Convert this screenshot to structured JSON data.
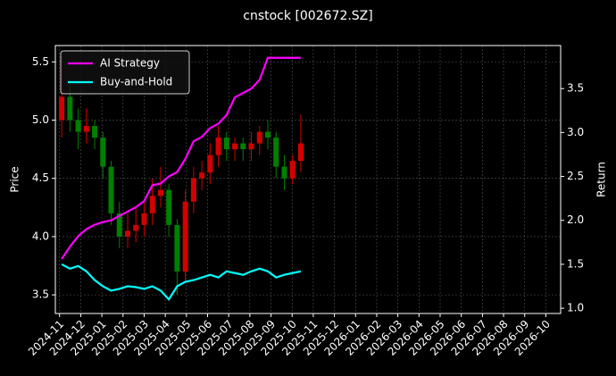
{
  "chart_data": {
    "type": "candlestick",
    "title": "cnstock [002672.SZ]",
    "y_label": "Price",
    "y2_label": "Return",
    "x": [
      0.1,
      0.49,
      0.88,
      1.27,
      1.66,
      2.05,
      2.44,
      2.83,
      3.22,
      3.61,
      4.0,
      4.39,
      4.78,
      5.17,
      5.56,
      5.95,
      6.34,
      6.73,
      7.12,
      7.51,
      7.9,
      8.29,
      8.68,
      9.07,
      9.46,
      9.85,
      10.24,
      10.63,
      11.02,
      11.41
    ],
    "open": [
      5.0,
      5.2,
      5.0,
      4.9,
      4.95,
      4.85,
      4.6,
      4.2,
      4.0,
      4.05,
      4.1,
      4.2,
      4.35,
      4.4,
      4.1,
      3.7,
      4.3,
      4.5,
      4.55,
      4.7,
      4.85,
      4.75,
      4.8,
      4.75,
      4.8,
      4.9,
      4.85,
      4.6,
      4.5,
      4.65
    ],
    "high": [
      5.55,
      5.35,
      5.1,
      5.1,
      5.0,
      4.9,
      4.65,
      4.3,
      4.2,
      4.25,
      4.3,
      4.5,
      4.6,
      4.45,
      4.15,
      4.4,
      4.6,
      4.65,
      4.8,
      4.95,
      4.9,
      4.85,
      4.85,
      4.9,
      4.95,
      5.0,
      4.9,
      4.7,
      4.7,
      5.05
    ],
    "low": [
      4.85,
      4.9,
      4.75,
      4.8,
      4.75,
      4.5,
      4.1,
      3.9,
      3.9,
      3.95,
      4.0,
      4.1,
      4.25,
      4.0,
      3.5,
      3.6,
      4.2,
      4.4,
      4.45,
      4.6,
      4.65,
      4.65,
      4.65,
      4.65,
      4.7,
      4.75,
      4.5,
      4.4,
      4.45,
      4.55
    ],
    "close": [
      5.2,
      5.0,
      4.9,
      4.95,
      4.85,
      4.6,
      4.2,
      4.0,
      4.05,
      4.1,
      4.2,
      4.35,
      4.4,
      4.1,
      3.7,
      4.3,
      4.5,
      4.55,
      4.7,
      4.85,
      4.75,
      4.8,
      4.75,
      4.8,
      4.9,
      4.85,
      4.6,
      4.5,
      4.65,
      4.8
    ],
    "up_color": "#d40000",
    "down_color": "#008000",
    "series": [
      {
        "name": "AI Strategy",
        "color": "#ff00ff",
        "axis": "y2",
        "values": [
          1.56,
          1.7,
          1.82,
          1.9,
          1.95,
          1.98,
          2.0,
          2.05,
          2.1,
          2.15,
          2.22,
          2.4,
          2.42,
          2.5,
          2.55,
          2.7,
          2.9,
          2.95,
          3.05,
          3.1,
          3.2,
          3.4,
          3.45,
          3.5,
          3.6,
          3.85,
          3.85,
          3.85,
          3.85,
          3.85
        ]
      },
      {
        "name": "Buy-and-Hold",
        "color": "#00ffff",
        "axis": "y2",
        "values": [
          1.5,
          1.45,
          1.48,
          1.42,
          1.32,
          1.25,
          1.2,
          1.22,
          1.25,
          1.24,
          1.22,
          1.25,
          1.2,
          1.1,
          1.25,
          1.3,
          1.32,
          1.35,
          1.38,
          1.35,
          1.42,
          1.4,
          1.38,
          1.42,
          1.45,
          1.42,
          1.35,
          1.38,
          1.4,
          1.42
        ]
      }
    ],
    "xlim": [
      -0.2,
      23.7
    ],
    "xticks": [
      {
        "value": 0,
        "label": "2024-11"
      },
      {
        "value": 1,
        "label": "2024-12"
      },
      {
        "value": 2,
        "label": "2025-01"
      },
      {
        "value": 3,
        "label": "2025-02"
      },
      {
        "value": 4,
        "label": "2025-03"
      },
      {
        "value": 5,
        "label": "2025-04"
      },
      {
        "value": 6,
        "label": "2025-05"
      },
      {
        "value": 7,
        "label": "2025-06"
      },
      {
        "value": 8,
        "label": "2025-07"
      },
      {
        "value": 9,
        "label": "2025-08"
      },
      {
        "value": 10,
        "label": "2025-09"
      },
      {
        "value": 11,
        "label": "2025-10"
      },
      {
        "value": 12,
        "label": "2025-11"
      },
      {
        "value": 13,
        "label": "2025-12"
      },
      {
        "value": 14,
        "label": "2026-01"
      },
      {
        "value": 15,
        "label": "2026-02"
      },
      {
        "value": 16,
        "label": "2026-03"
      },
      {
        "value": 17,
        "label": "2026-04"
      },
      {
        "value": 18,
        "label": "2026-05"
      },
      {
        "value": 19,
        "label": "2026-06"
      },
      {
        "value": 20,
        "label": "2026-07"
      },
      {
        "value": 21,
        "label": "2026-08"
      },
      {
        "value": 22,
        "label": "2026-09"
      },
      {
        "value": 23,
        "label": "2026-10"
      }
    ],
    "ylim": [
      3.34,
      5.64
    ],
    "yticks": [
      3.5,
      {
        "value": 4.0,
        "label": "4.0"
      },
      4.5,
      {
        "value": 5.0,
        "label": "5.0"
      },
      5.5
    ],
    "y2lim": [
      0.94,
      3.99
    ],
    "y2ticks": [
      {
        "value": 1.0,
        "label": "1.0"
      },
      1.5,
      {
        "value": 2.0,
        "label": "2.0"
      },
      2.5,
      {
        "value": 3.0,
        "label": "3.0"
      },
      3.5
    ],
    "grid": true,
    "legend": "upper left"
  }
}
